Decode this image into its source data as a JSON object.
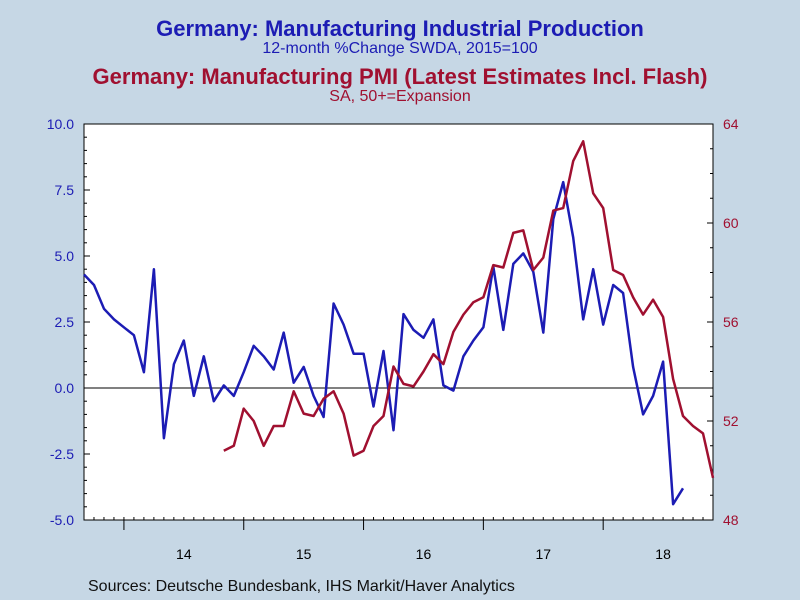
{
  "titles": {
    "series1_title": "Germany: Manufacturing Industrial Production",
    "series1_subtitle": "12-month %Change     SWDA, 2015=100",
    "series2_title": "Germany: Manufacturing PMI (Latest Estimates Incl. Flash)",
    "series2_subtitle": "SA, 50+=Expansion"
  },
  "source": "Sources:  Deutsche Bundesbank, IHS Markit/Haver Analytics",
  "colors": {
    "series1": "#1c1cb4",
    "series2": "#a01030",
    "background": "#c6d7e5",
    "plot": "#ffffff"
  },
  "chart_data": {
    "type": "line",
    "grid": false,
    "x_tick_labels": [
      "14",
      "15",
      "16",
      "17",
      "18"
    ],
    "x_start": "2013-09",
    "x_end": "2018-12",
    "y_left": {
      "range": [
        -5.0,
        10.0
      ],
      "ticks": [
        "-5.0",
        "-2.5",
        "0.0",
        "2.5",
        "5.0",
        "7.5",
        "10.0"
      ],
      "reference_line": 0
    },
    "y_right": {
      "range": [
        48,
        64
      ],
      "ticks": [
        "48",
        "52",
        "56",
        "60",
        "64"
      ]
    },
    "series": [
      {
        "axis": "left",
        "start": "2013-09",
        "values": [
          4.3,
          3.9,
          3.0,
          2.6,
          2.3,
          2.0,
          0.6,
          4.5,
          -1.9,
          0.9,
          1.8,
          -0.3,
          1.2,
          -0.5,
          0.1,
          -0.3,
          0.6,
          1.6,
          1.2,
          0.7,
          2.1,
          0.2,
          0.8,
          -0.3,
          -1.1,
          3.2,
          2.4,
          1.3,
          1.3,
          -0.7,
          1.4,
          -1.6,
          2.8,
          2.2,
          1.9,
          2.6,
          0.1,
          -0.1,
          1.2,
          1.8,
          2.3,
          4.6,
          2.2,
          4.7,
          5.1,
          4.4,
          2.1,
          6.4,
          7.8,
          5.7,
          2.6,
          4.5,
          2.4,
          3.9,
          3.6,
          0.8,
          -1.0,
          -0.3,
          1.0,
          -4.4,
          -3.8
        ]
      },
      {
        "axis": "right",
        "start": "2014-11",
        "values": [
          50.8,
          51.0,
          52.5,
          52.0,
          51.0,
          51.8,
          51.8,
          53.2,
          52.3,
          52.2,
          52.9,
          53.2,
          52.3,
          50.6,
          50.8,
          51.8,
          52.2,
          54.2,
          53.5,
          53.4,
          54.0,
          54.7,
          54.3,
          55.6,
          56.3,
          56.8,
          57.0,
          58.3,
          58.2,
          59.6,
          59.7,
          58.1,
          58.6,
          60.5,
          60.6,
          62.5,
          63.3,
          61.2,
          60.6,
          58.1,
          57.9,
          57.0,
          56.3,
          56.9,
          56.2,
          53.7,
          52.2,
          51.8,
          51.5,
          49.7
        ]
      }
    ]
  }
}
